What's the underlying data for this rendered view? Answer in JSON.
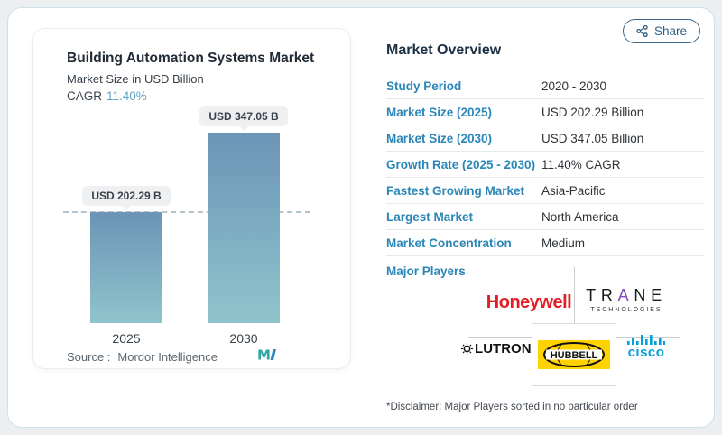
{
  "share": {
    "label": "Share",
    "icon": "share-nodes-icon"
  },
  "chart": {
    "title": "Building Automation Systems Market",
    "subtitle": "Market Size in USD Billion",
    "cagr_label": "CAGR",
    "cagr_value": "11.40%",
    "source_label": "Source :",
    "source_value": "Mordor Intelligence",
    "logo": "mordor-intelligence-logo"
  },
  "chart_data": {
    "type": "bar",
    "title": "Building Automation Systems Market",
    "subtitle": "Market Size in USD Billion",
    "cagr": "11.40%",
    "categories": [
      "2025",
      "2030"
    ],
    "values": [
      202.29,
      347.05
    ],
    "unit": "USD Billion",
    "bar_labels": [
      "USD 202.29 B",
      "USD 347.05 B"
    ],
    "ylim": [
      0,
      380
    ],
    "grid": false,
    "reference_line": "horizontal dashed line at 2025 value",
    "bar_color_top": "#6b94b6",
    "bar_color_bottom": "#8fc4cc"
  },
  "overview": {
    "title": "Market Overview",
    "rows": [
      {
        "label": "Study Period",
        "value": "2020 - 2030"
      },
      {
        "label": "Market Size (2025)",
        "value": "USD 202.29 Billion"
      },
      {
        "label": "Market Size (2030)",
        "value": "USD 347.05 Billion"
      },
      {
        "label": "Growth Rate (2025 - 2030)",
        "value": "11.40% CAGR"
      },
      {
        "label": "Fastest Growing Market",
        "value": "Asia-Pacific"
      },
      {
        "label": "Largest Market",
        "value": "North America"
      },
      {
        "label": "Market Concentration",
        "value": "Medium"
      }
    ],
    "major_players_label": "Major Players",
    "players": {
      "honeywell": "Honeywell",
      "trane_left": "TR",
      "trane_a": "A",
      "trane_right": "NE",
      "trane_sub": "TECHNOLOGIES",
      "lutron": "LUTRON",
      "lutron_suffix": "®",
      "hubbell": "HUBBELL",
      "cisco": "cisco"
    },
    "disclaimer": "*Disclaimer: Major Players sorted in no particular order"
  },
  "colors": {
    "accent_blue": "#2b86b8",
    "heading_navy": "#1b3044",
    "cagr_teal": "#5ea4c4",
    "honeywell_red": "#e21f26",
    "cisco_blue": "#049fd9",
    "hubbell_yellow": "#ffd200",
    "trane_purple": "#7c4dc4"
  }
}
